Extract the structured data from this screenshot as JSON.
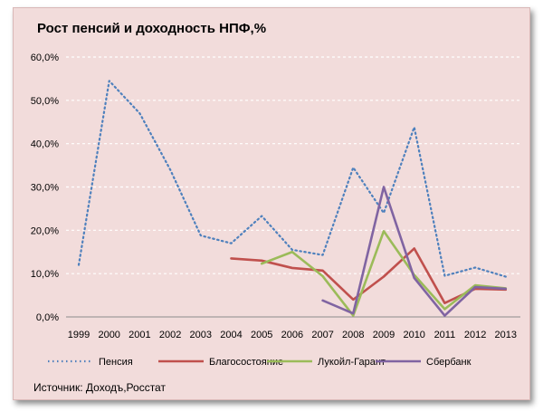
{
  "chart_data": {
    "type": "line",
    "title": "Рост пенсий и доходность НПФ,%",
    "source": "Источник: Доходъ,Росстат",
    "categories": [
      "1999",
      "2000",
      "2001",
      "2002",
      "2003",
      "2004",
      "2005",
      "2006",
      "2007",
      "2008",
      "2009",
      "2010",
      "2011",
      "2012",
      "2013"
    ],
    "y_ticks": [
      "0,0%",
      "10,0%",
      "20,0%",
      "30,0%",
      "40,0%",
      "50,0%",
      "60,0%"
    ],
    "ylim": [
      0,
      60
    ],
    "grid": true,
    "legend_position": "bottom",
    "series": [
      {
        "name": "Пенсия",
        "color": "#4f81bd",
        "dash": "dotted",
        "values": [
          12.0,
          54.5,
          47.0,
          34.0,
          18.8,
          17.0,
          23.3,
          15.5,
          14.3,
          34.5,
          24.0,
          43.8,
          9.5,
          11.4,
          9.3
        ]
      },
      {
        "name": "Благосостояние",
        "color": "#c0504d",
        "dash": "solid",
        "values": [
          null,
          null,
          null,
          null,
          null,
          13.5,
          13.0,
          11.3,
          10.7,
          4.0,
          9.3,
          15.8,
          3.2,
          6.5,
          6.3
        ]
      },
      {
        "name": "Лукойл-Гарант",
        "color": "#9bbb59",
        "dash": "solid",
        "values": [
          null,
          null,
          null,
          null,
          null,
          null,
          12.3,
          15.0,
          9.4,
          0.3,
          19.8,
          9.7,
          1.8,
          7.3,
          6.6
        ]
      },
      {
        "name": "Сбербанк",
        "color": "#8064a2",
        "dash": "solid",
        "values": [
          null,
          null,
          null,
          null,
          null,
          null,
          null,
          null,
          3.8,
          0.8,
          30.0,
          9.0,
          0.3,
          6.9,
          6.5
        ]
      }
    ]
  }
}
